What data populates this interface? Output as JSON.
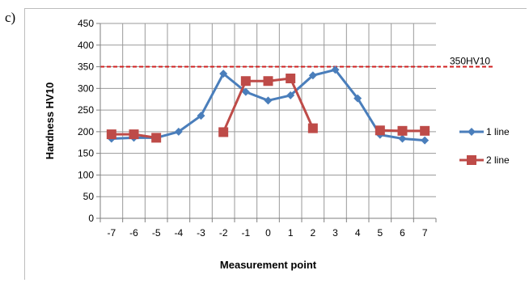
{
  "panel_label": "c)",
  "chart_data": {
    "type": "line",
    "title": "",
    "xlabel": "Measurement point",
    "ylabel": "Hardness HV10",
    "x": [
      -7,
      -6,
      -5,
      -4,
      -3,
      -2,
      -1,
      0,
      1,
      2,
      3,
      4,
      5,
      6,
      7
    ],
    "xlim": [
      -7.5,
      7.5
    ],
    "ylim": [
      0,
      450
    ],
    "ytick_step": 50,
    "grid": true,
    "legend_position": "right",
    "series": [
      {
        "name": "1 line",
        "marker": "diamond",
        "color": "#4a7ebb",
        "points": [
          [
            -7,
            184
          ],
          [
            -6,
            186
          ],
          [
            -5,
            186
          ],
          [
            -4,
            200
          ],
          [
            -3,
            237
          ],
          [
            -2,
            334
          ],
          [
            -1,
            292
          ],
          [
            0,
            272
          ],
          [
            1,
            284
          ],
          [
            2,
            330
          ],
          [
            3,
            343
          ],
          [
            4,
            277
          ],
          [
            5,
            193
          ],
          [
            6,
            184
          ],
          [
            7,
            180
          ]
        ]
      },
      {
        "name": "2 line",
        "marker": "square",
        "color": "#be4b48",
        "points": [
          [
            -7,
            194
          ],
          [
            -6,
            194
          ],
          [
            -5,
            186
          ],
          [
            -2,
            199
          ],
          [
            -1,
            317
          ],
          [
            0,
            317
          ],
          [
            1,
            323
          ],
          [
            2,
            208
          ],
          [
            5,
            203
          ],
          [
            6,
            202
          ],
          [
            7,
            202
          ]
        ]
      }
    ],
    "reference_line": {
      "value": 350,
      "label": "350HV10",
      "color": "#d02020"
    }
  }
}
